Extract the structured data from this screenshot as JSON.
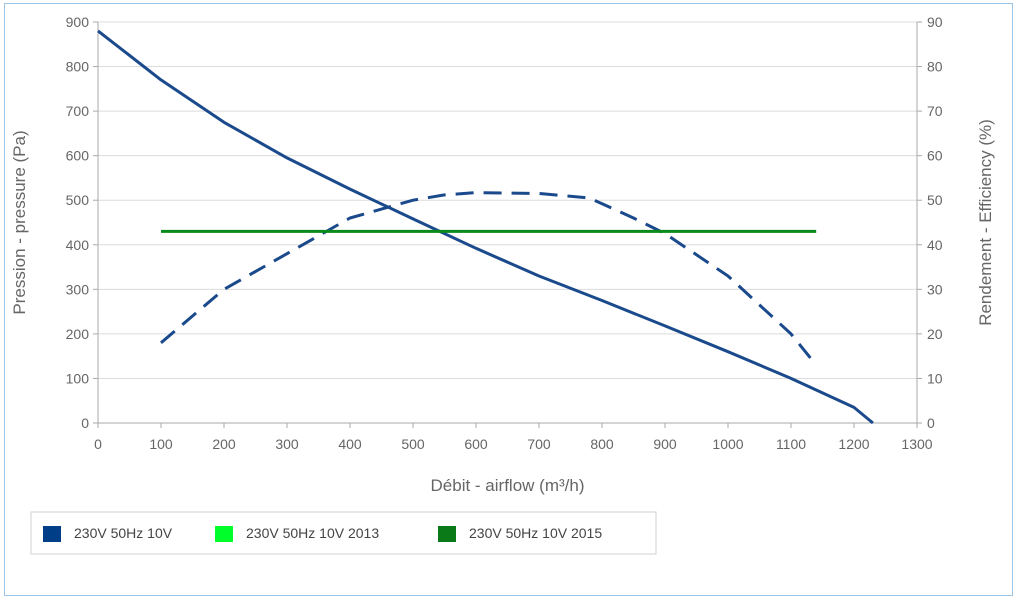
{
  "chart_data": {
    "type": "line",
    "title": "",
    "xlabel": "Débit - airflow (m³/h)",
    "ylabel": "Pression - pressure (Pa)",
    "y2label": "Rendement - Efficiency (%)",
    "xlim": [
      0,
      1300
    ],
    "ylim": [
      0,
      900
    ],
    "y2lim": [
      0,
      90
    ],
    "x_ticks": [
      "0",
      "100",
      "200",
      "300",
      "400",
      "500",
      "600",
      "700",
      "800",
      "900",
      "1000",
      "1100",
      "1200",
      "1300"
    ],
    "y_ticks": [
      "0",
      "100",
      "200",
      "300",
      "400",
      "500",
      "600",
      "700",
      "800",
      "900"
    ],
    "y2_ticks": [
      "0",
      "10",
      "20",
      "30",
      "40",
      "50",
      "60",
      "70",
      "80",
      "90"
    ],
    "grid": true,
    "legend_position": "bottom-left",
    "legend": [
      {
        "label": "230V 50Hz 10V",
        "color": "#003f87"
      },
      {
        "label": "230V 50Hz 10V 2013",
        "color": "#00ff2a"
      },
      {
        "label": "230V 50Hz 10V 2015",
        "color": "#0a7a18"
      }
    ],
    "series": [
      {
        "axis": "left",
        "style": "solid",
        "color": "#1a4a8c",
        "x": [
          0,
          100,
          200,
          300,
          400,
          500,
          600,
          700,
          800,
          900,
          1000,
          1100,
          1200,
          1230
        ],
        "y": [
          880,
          770,
          675,
          595,
          525,
          458,
          392,
          330,
          275,
          218,
          160,
          100,
          35,
          0
        ]
      },
      {
        "axis": "right",
        "style": "dashed",
        "color": "#1a4a8c",
        "x": [
          100,
          200,
          300,
          400,
          500,
          550,
          600,
          700,
          780,
          850,
          900,
          1000,
          1100,
          1140
        ],
        "y": [
          18,
          30,
          38,
          46,
          50,
          51.2,
          51.7,
          51.5,
          50.5,
          46,
          42.5,
          33,
          20,
          13
        ]
      },
      {
        "axis": "right",
        "style": "solid",
        "color": "#0a8a1a",
        "x": [
          100,
          1140
        ],
        "y": [
          43,
          43
        ]
      }
    ]
  }
}
